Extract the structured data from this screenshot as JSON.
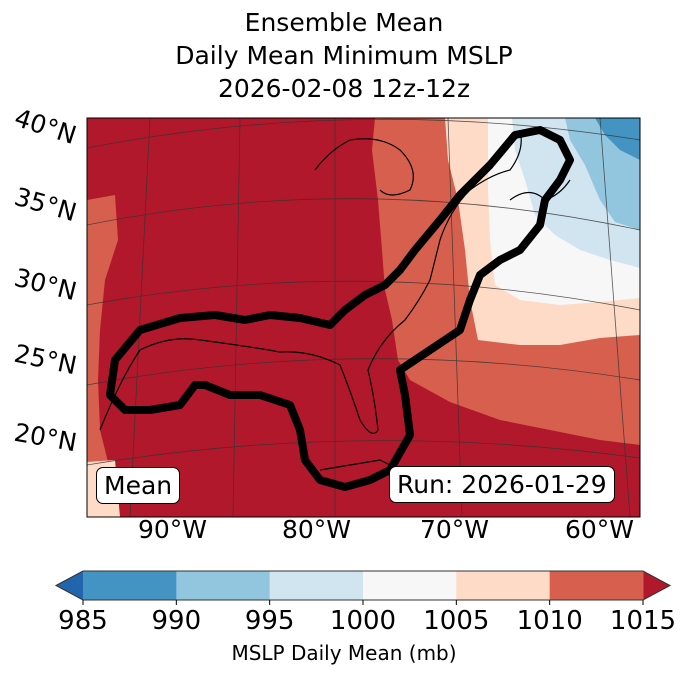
{
  "title": {
    "line1": "Ensemble Mean",
    "line2": "Daily Mean Minimum MSLP",
    "line3": "2026-02-08 12z-12z"
  },
  "map": {
    "lat_labels": [
      "40°N",
      "35°N",
      "30°N",
      "25°N",
      "20°N"
    ],
    "lon_labels": [
      "90°W",
      "80°W",
      "70°W",
      "60°W"
    ],
    "mean_label": "Mean",
    "run_label": "Run: 2026-01-29"
  },
  "colorbar": {
    "label": "MSLP Daily Mean (mb)",
    "ticks": [
      "985",
      "990",
      "995",
      "1000",
      "1005",
      "1010",
      "1015"
    ],
    "colors": [
      "#4393c3",
      "#92c5de",
      "#d1e5f0",
      "#f7f7f7",
      "#fddbc7",
      "#d6604d"
    ],
    "under_color": "#2166ac",
    "over_color": "#b2182b"
  }
}
